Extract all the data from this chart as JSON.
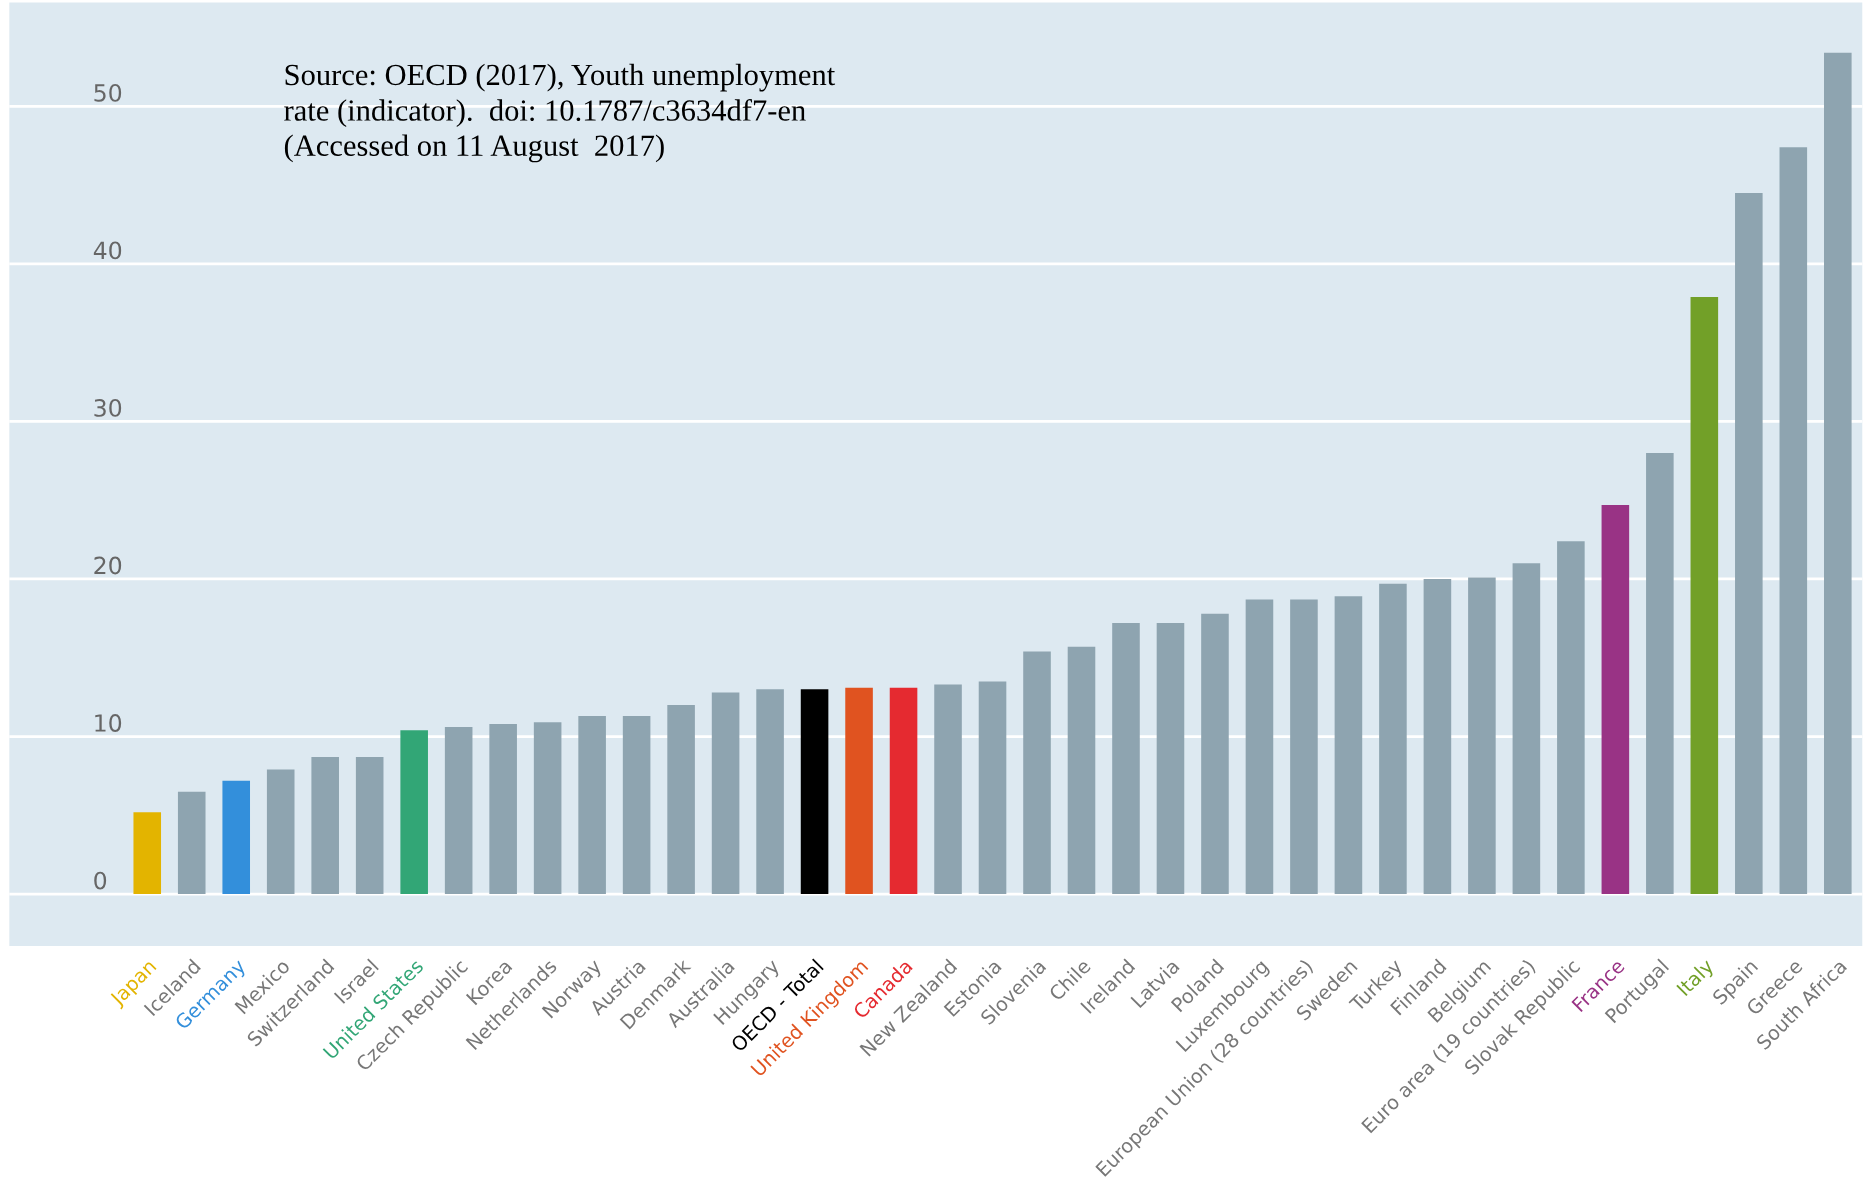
{
  "chart_data": {
    "type": "bar",
    "categories": [
      "Japan",
      "Iceland",
      "Germany",
      "Mexico",
      "Switzerland",
      "Israel",
      "United States",
      "Czech Republic",
      "Korea",
      "Netherlands",
      "Norway",
      "Austria",
      "Denmark",
      "Australia",
      "Hungary",
      "OECD - Total",
      "United Kingdom",
      "Canada",
      "New Zealand",
      "Estonia",
      "Slovenia",
      "Chile",
      "Ireland",
      "Latvia",
      "Poland",
      "Luxembourg",
      "European Union (28 countries)",
      "Sweden",
      "Turkey",
      "Finland",
      "Belgium",
      "Euro area (19 countries)",
      "Slovak Republic",
      "France",
      "Portugal",
      "Italy",
      "Spain",
      "Greece",
      "South Africa"
    ],
    "values": [
      5.2,
      6.5,
      7.2,
      7.9,
      8.7,
      8.7,
      10.4,
      10.6,
      10.8,
      10.9,
      11.3,
      11.3,
      12.0,
      12.8,
      13.0,
      13.0,
      13.1,
      13.1,
      13.3,
      13.5,
      15.4,
      15.7,
      17.2,
      17.2,
      17.8,
      18.7,
      18.7,
      18.9,
      19.7,
      20.0,
      20.1,
      21.0,
      22.4,
      24.7,
      28.0,
      37.9,
      44.5,
      47.4,
      53.4
    ],
    "colors": [
      "#e3b400",
      "#8ea4b0",
      "#338fdb",
      "#8ea4b0",
      "#8ea4b0",
      "#8ea4b0",
      "#32a676",
      "#8ea4b0",
      "#8ea4b0",
      "#8ea4b0",
      "#8ea4b0",
      "#8ea4b0",
      "#8ea4b0",
      "#8ea4b0",
      "#8ea4b0",
      "#000000",
      "#e05320",
      "#e52a30",
      "#8ea4b0",
      "#8ea4b0",
      "#8ea4b0",
      "#8ea4b0",
      "#8ea4b0",
      "#8ea4b0",
      "#8ea4b0",
      "#8ea4b0",
      "#8ea4b0",
      "#8ea4b0",
      "#8ea4b0",
      "#8ea4b0",
      "#8ea4b0",
      "#8ea4b0",
      "#8ea4b0",
      "#993385",
      "#8ea4b0",
      "#72a028",
      "#8ea4b0",
      "#8ea4b0",
      "#8ea4b0"
    ],
    "ylim": [
      -3.3,
      56.6
    ],
    "yticks": [
      0,
      10,
      20,
      30,
      40,
      50
    ],
    "grid": "y",
    "annotations": [
      "Source: OECD (2017), Youth unemployment\nrate (indicator).  doi: 10.1787/c3634df7-en\n(Accessed on 11 August  2017)"
    ]
  }
}
